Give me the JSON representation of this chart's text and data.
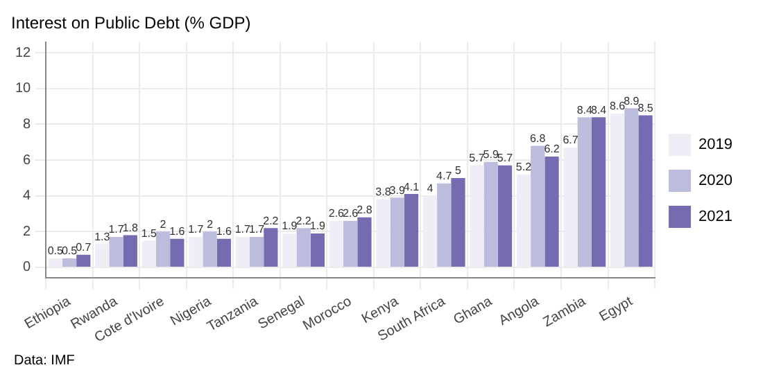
{
  "chart_data": {
    "type": "bar",
    "title": "Interest on Public Debt (% GDP)",
    "categories": [
      "Ethiopia",
      "Rwanda",
      "Cote d'Ivoire",
      "Nigeria",
      "Tanzania",
      "Senegal",
      "Morocco",
      "Kenya",
      "South Africa",
      "Ghana",
      "Angola",
      "Zambia",
      "Egypt"
    ],
    "series": [
      {
        "name": "2019",
        "color": "#efedf5",
        "values": [
          0.5,
          1.3,
          1.5,
          1.7,
          1.7,
          1.9,
          2.6,
          3.8,
          4,
          5.7,
          5.2,
          6.7,
          8.6
        ]
      },
      {
        "name": "2020",
        "color": "#bcbddc",
        "values": [
          0.5,
          1.7,
          2,
          2,
          1.7,
          2.2,
          2.6,
          3.9,
          4.7,
          5.9,
          6.8,
          8.4,
          8.9
        ]
      },
      {
        "name": "2021",
        "color": "#756bb1",
        "values": [
          0.7,
          1.8,
          1.6,
          1.6,
          2.2,
          1.9,
          2.8,
          4.1,
          5,
          5.7,
          6.2,
          8.4,
          8.5
        ]
      }
    ],
    "ylim": [
      -0.6,
      12.6
    ],
    "yticks": [
      0,
      2,
      4,
      6,
      8,
      10,
      12
    ],
    "grid": true,
    "legend": "right",
    "data_labels": true,
    "annotations": [
      "Data: IMF"
    ]
  }
}
